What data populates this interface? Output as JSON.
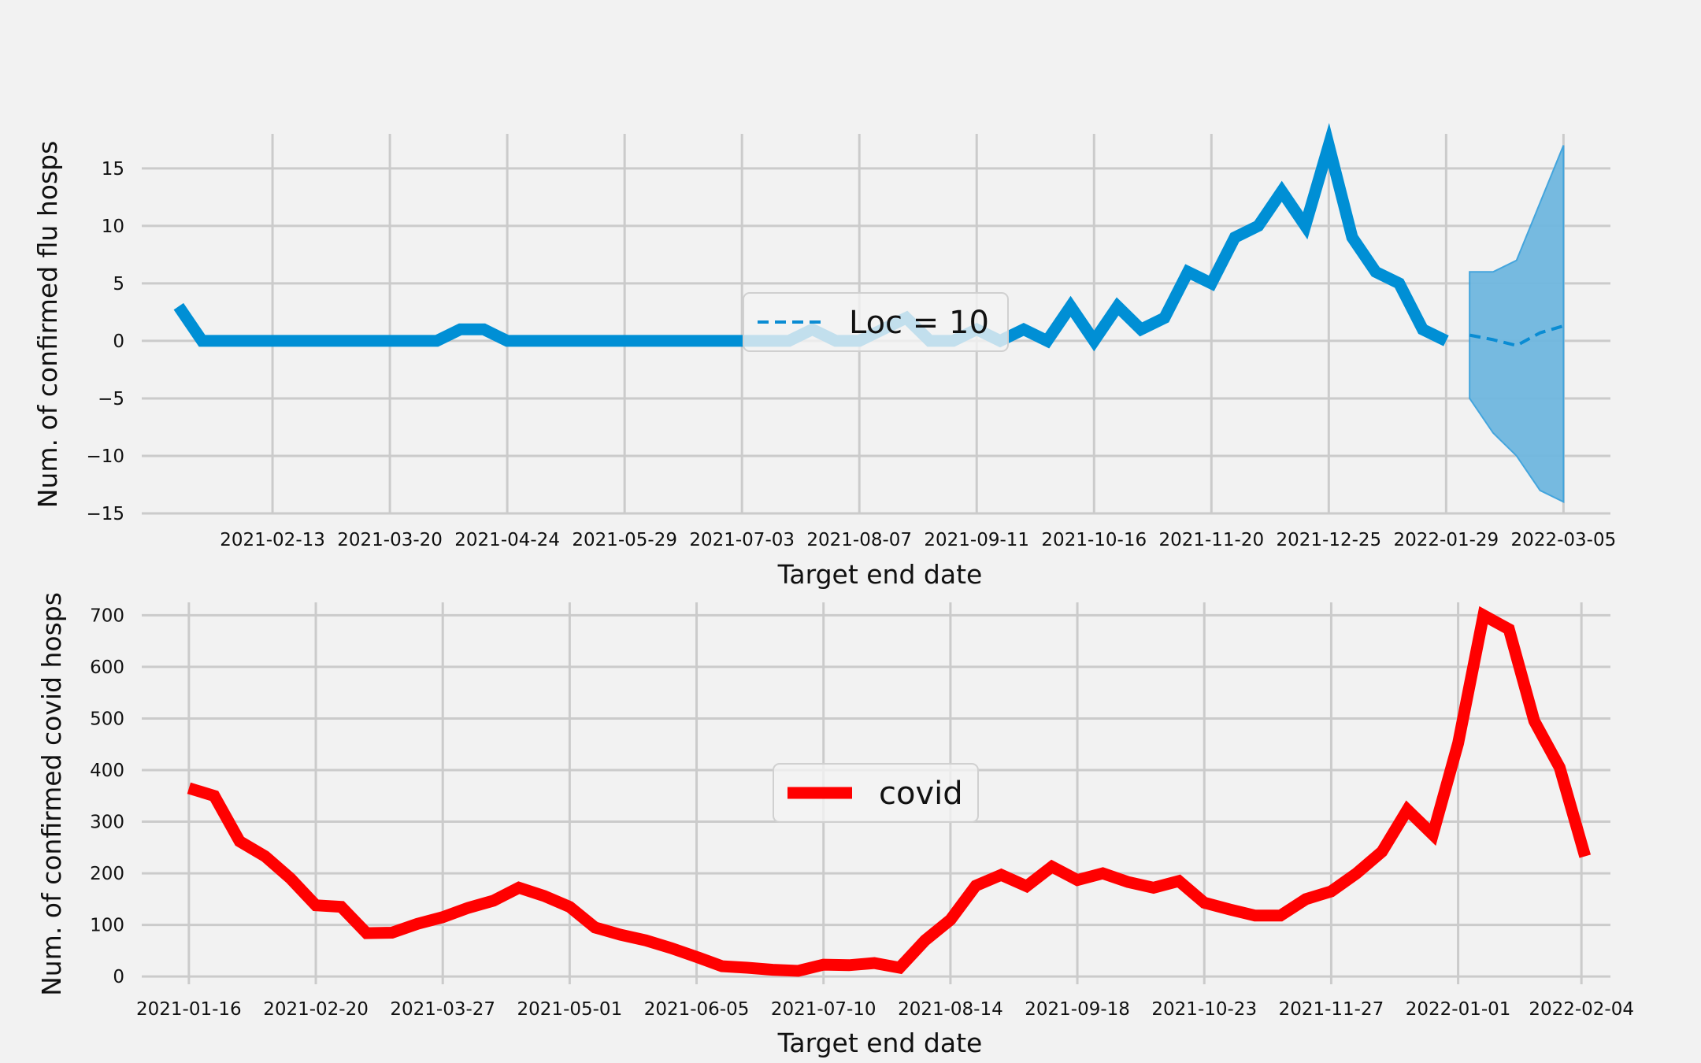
{
  "colors": {
    "background": "#f2f2f2",
    "flu": "#008fd5",
    "flu_forecast": "#0a8cd3",
    "flu_interval": "#70b8e0",
    "covid": "#ff0000",
    "grid": "#cbcbcb"
  },
  "chart_data": [
    {
      "type": "line",
      "xlabel": "Target end date",
      "ylabel": "Num. of confirmed flu hosps",
      "ylim": [
        -15,
        18
      ],
      "yticks": [
        -15,
        -10,
        -5,
        0,
        5,
        10,
        15
      ],
      "ytick_labels": [
        "−15",
        "−10",
        "−5",
        "0",
        "5",
        "10",
        "15"
      ],
      "xlim": [
        "2021-01-05",
        "2022-03-19"
      ],
      "xticks": [
        "2021-02-13",
        "2021-03-20",
        "2021-04-24",
        "2021-05-29",
        "2021-07-03",
        "2021-08-07",
        "2021-09-11",
        "2021-10-16",
        "2021-11-20",
        "2021-12-25",
        "2022-01-29",
        "2022-03-05"
      ],
      "grid": true,
      "legend": {
        "label": "Loc = 10",
        "style": "dashed",
        "placement": "center"
      },
      "series": [
        {
          "style": "solid",
          "start": "2021-01-16",
          "step_days": 7,
          "values": [
            3,
            0,
            0,
            0,
            0,
            0,
            0,
            0,
            0,
            0,
            0,
            0,
            1,
            1,
            0,
            0,
            0,
            0,
            0,
            0,
            0,
            0,
            0,
            0,
            0,
            0,
            0,
            1,
            0,
            0,
            1,
            2,
            0,
            0,
            1,
            0,
            1,
            0,
            3,
            0,
            3,
            1,
            2,
            6,
            5,
            9,
            10,
            13,
            10,
            17,
            9,
            6,
            5,
            1,
            0
          ]
        },
        {
          "label": "Loc = 10",
          "style": "dashed",
          "x": [
            "2022-02-05",
            "2022-02-12",
            "2022-02-19",
            "2022-02-26",
            "2022-03-05"
          ],
          "values": [
            0.5,
            0.1,
            -0.4,
            0.7,
            1.3
          ],
          "lower": [
            -5,
            -8,
            -10,
            -13,
            -14
          ],
          "upper": [
            6,
            6,
            7,
            12,
            17
          ]
        }
      ]
    },
    {
      "type": "line",
      "xlabel": "Target end date",
      "ylabel": "Num. of confirmed covid hosps",
      "ylim": [
        -15,
        725
      ],
      "yticks": [
        0,
        100,
        200,
        300,
        400,
        500,
        600,
        700
      ],
      "ytick_labels": [
        "0",
        "100",
        "200",
        "300",
        "400",
        "500",
        "600",
        "700"
      ],
      "xlim": [
        "2021-01-03",
        "2022-02-12"
      ],
      "xticks": [
        "2021-01-16",
        "2021-02-20",
        "2021-03-27",
        "2021-05-01",
        "2021-06-05",
        "2021-07-10",
        "2021-08-14",
        "2021-09-18",
        "2021-10-23",
        "2021-11-27",
        "2022-01-01",
        "2022-02-04"
      ],
      "grid": true,
      "legend": {
        "label": "covid",
        "style": "solid",
        "placement": "center"
      },
      "series": [
        {
          "label": "covid",
          "style": "solid",
          "start": "2021-01-16",
          "step_days": 7,
          "values": [
            365,
            350,
            262,
            233,
            190,
            138,
            135,
            84,
            85,
            102,
            115,
            133,
            147,
            172,
            156,
            135,
            95,
            81,
            70,
            55,
            38,
            20,
            17,
            13,
            11,
            23,
            22,
            26,
            17,
            70,
            110,
            176,
            197,
            175,
            213,
            187,
            200,
            183,
            172,
            185,
            143,
            130,
            118,
            118,
            150,
            165,
            200,
            242,
            323,
            275,
            452,
            700,
            673,
            495,
            405,
            233
          ]
        }
      ]
    }
  ]
}
